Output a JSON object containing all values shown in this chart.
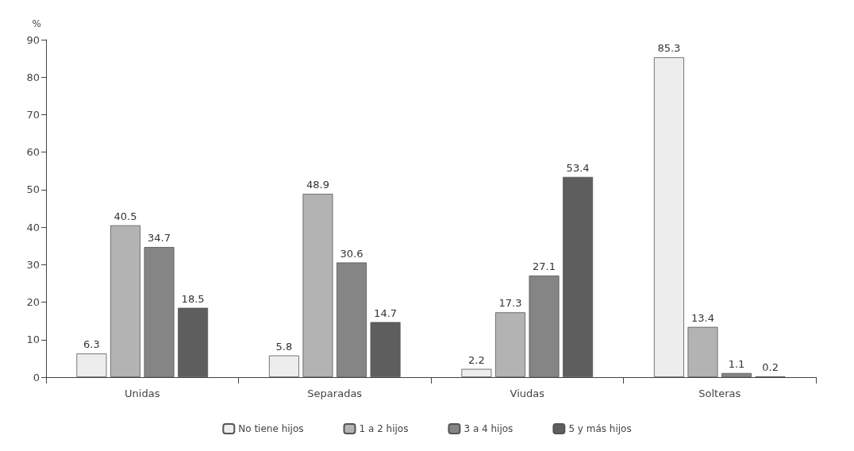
{
  "chart_data": {
    "type": "bar",
    "ylabel": "%",
    "categories": [
      "Unidas",
      "Separadas",
      "Viudas",
      "Solteras"
    ],
    "series": [
      {
        "name": "No tiene hijos",
        "color": "#ededed",
        "values": [
          6.3,
          5.8,
          2.2,
          85.3
        ]
      },
      {
        "name": "1 a 2 hijos",
        "color": "#b3b3b3",
        "values": [
          40.5,
          48.9,
          17.3,
          13.4
        ]
      },
      {
        "name": "3 a 4 hijos",
        "color": "#858585",
        "values": [
          34.7,
          30.6,
          27.1,
          1.1
        ]
      },
      {
        "name": "5 y más hijos",
        "color": "#5e5e5e",
        "values": [
          18.5,
          14.7,
          53.4,
          0.2
        ]
      }
    ],
    "ylim": [
      0,
      90
    ],
    "yticks": [
      0,
      10,
      20,
      30,
      40,
      50,
      60,
      70,
      80,
      90
    ],
    "grid": false,
    "legend": "bottom",
    "data_labels": true
  }
}
